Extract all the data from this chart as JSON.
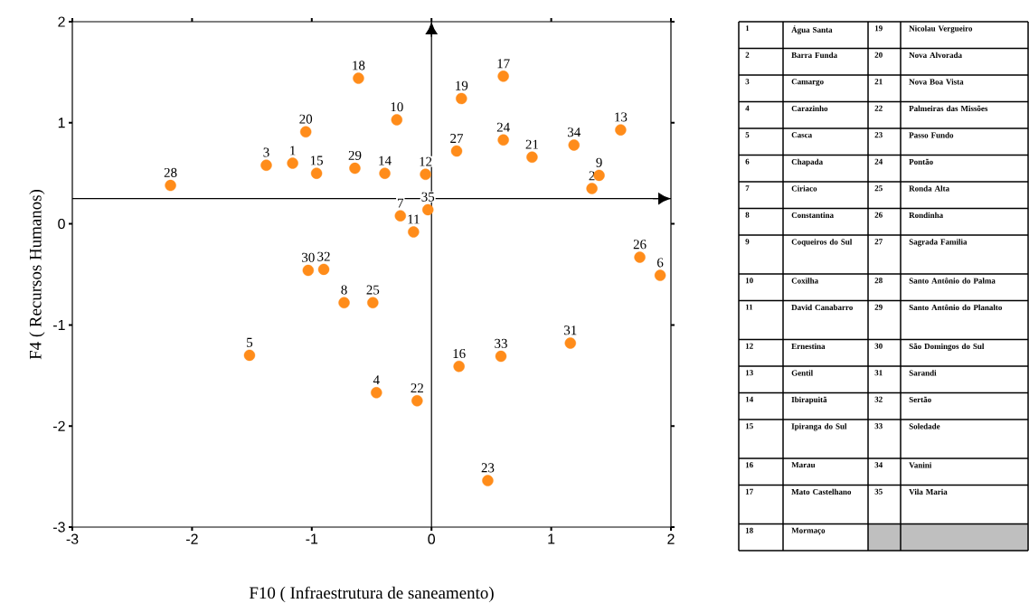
{
  "chart_data": {
    "type": "scatter",
    "xlabel": "F10 ( Infraestrutura de saneamento)",
    "ylabel": "F4 ( Recursos Humanos)",
    "x": [
      -1.16,
      1.34,
      -1.38,
      -0.46,
      -1.52,
      1.91,
      -0.26,
      -0.73,
      1.4,
      -0.29,
      -0.15,
      -0.05,
      1.58,
      -0.39,
      -0.96,
      0.23,
      0.6,
      -0.61,
      0.25,
      -1.05,
      0.84,
      -0.12,
      0.47,
      0.6,
      -0.49,
      1.74,
      0.21,
      -2.18,
      -0.64,
      -1.03,
      1.16,
      -0.9,
      0.58,
      1.19,
      -0.03
    ],
    "values": [
      0.6,
      0.35,
      0.58,
      -1.67,
      -1.3,
      -0.51,
      0.08,
      -0.78,
      0.48,
      1.03,
      -0.08,
      0.49,
      0.93,
      0.5,
      0.5,
      -1.41,
      1.46,
      1.44,
      1.24,
      0.91,
      0.66,
      -1.75,
      -2.54,
      0.83,
      -0.78,
      -0.33,
      0.72,
      0.38,
      0.55,
      -0.46,
      -1.18,
      -0.45,
      -1.31,
      0.78,
      0.14
    ],
    "color": "#ff8c1a",
    "marker": "circle",
    "xlim": [
      -3,
      2
    ],
    "ylim": [
      -3,
      2
    ],
    "xticks": [
      -3,
      -2,
      -1,
      0,
      1,
      2
    ],
    "yticks": [
      -3,
      -2,
      -1,
      0,
      1,
      2
    ],
    "ref_lines": [
      {
        "axis": "x",
        "value": 0
      },
      {
        "axis": "y",
        "value": 0.25
      }
    ],
    "annotations": [
      {
        "text": "1",
        "x": -1.16,
        "y": 0.6
      },
      {
        "text": "2",
        "x": 1.34,
        "y": 0.35
      },
      {
        "text": "3",
        "x": -1.38,
        "y": 0.58
      },
      {
        "text": "4",
        "x": -0.46,
        "y": -1.67
      },
      {
        "text": "5",
        "x": -1.52,
        "y": -1.3
      },
      {
        "text": "6",
        "x": 1.91,
        "y": -0.51
      },
      {
        "text": "7",
        "x": -0.26,
        "y": 0.08
      },
      {
        "text": "8",
        "x": -0.73,
        "y": -0.78
      },
      {
        "text": "9",
        "x": 1.4,
        "y": 0.48
      },
      {
        "text": "10",
        "x": -0.29,
        "y": 1.03
      },
      {
        "text": "11",
        "x": -0.15,
        "y": -0.08
      },
      {
        "text": "12",
        "x": -0.05,
        "y": 0.49
      },
      {
        "text": "13",
        "x": 1.58,
        "y": 0.93
      },
      {
        "text": "14",
        "x": -0.39,
        "y": 0.5
      },
      {
        "text": "15",
        "x": -0.96,
        "y": 0.5
      },
      {
        "text": "16",
        "x": 0.23,
        "y": -1.41
      },
      {
        "text": "17",
        "x": 0.6,
        "y": 1.46
      },
      {
        "text": "18",
        "x": -0.61,
        "y": 1.44
      },
      {
        "text": "19",
        "x": 0.25,
        "y": 1.24
      },
      {
        "text": "20",
        "x": -1.05,
        "y": 0.91
      },
      {
        "text": "21",
        "x": 0.84,
        "y": 0.66
      },
      {
        "text": "22",
        "x": -0.12,
        "y": -1.75
      },
      {
        "text": "23",
        "x": 0.47,
        "y": -2.54
      },
      {
        "text": "24",
        "x": 0.6,
        "y": 0.83
      },
      {
        "text": "25",
        "x": -0.49,
        "y": -0.78
      },
      {
        "text": "26",
        "x": 1.74,
        "y": -0.33
      },
      {
        "text": "27",
        "x": 0.21,
        "y": 0.72
      },
      {
        "text": "28",
        "x": -2.18,
        "y": 0.38
      },
      {
        "text": "29",
        "x": -0.64,
        "y": 0.55
      },
      {
        "text": "30",
        "x": -1.03,
        "y": -0.46
      },
      {
        "text": "31",
        "x": 1.16,
        "y": -1.18
      },
      {
        "text": "32",
        "x": -0.9,
        "y": -0.45
      },
      {
        "text": "33",
        "x": 0.58,
        "y": -1.31
      },
      {
        "text": "34",
        "x": 1.19,
        "y": 0.78
      },
      {
        "text": "35",
        "x": -0.03,
        "y": 0.14
      },
      "1",
      "Água Santa",
      "2",
      "Barra Funda",
      "3",
      "Camargo",
      "4",
      "Carazinho",
      "5",
      "Casca",
      "6",
      "Chapada",
      "7",
      "Ciriaco",
      "8",
      "Constantina",
      "9",
      "Coqueiros do Sul",
      "10",
      "Coxilha",
      "11",
      "David Canabarro",
      "12",
      "Ernestina",
      "13",
      "Gentil",
      "14",
      "Ibirapuitã",
      "15",
      "Ipiranga do Sul",
      "16",
      "Marau",
      "17",
      "Mato Castelhano",
      "18",
      "Mormaço",
      "19",
      "Nicolau Vergueiro",
      "20",
      "Nova Alvorada",
      "21",
      "Nova Boa Vista",
      "22",
      "Palmeiras das Missões",
      "23",
      "Passo Fundo",
      "24",
      "Pontão",
      "25",
      "Ronda Alta",
      "26",
      "Rondinha",
      "27",
      "Sagrada Familia",
      "28",
      "Santo Antônio do Palma",
      "29",
      "Santo Antônio do Planalto",
      "30",
      "São Domingos do Sul",
      "31",
      "Sarandi",
      "32",
      "Sertão",
      "33",
      "Soledade",
      "34",
      "Vanini",
      "35",
      "Vila Maria"
    ]
  }
}
